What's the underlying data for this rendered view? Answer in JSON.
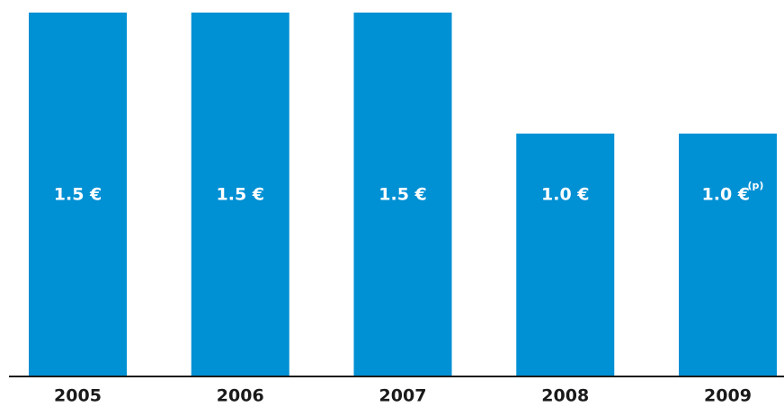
{
  "chart_data": {
    "type": "bar",
    "categories": [
      "2005",
      "2006",
      "2007",
      "2008",
      "2009"
    ],
    "values": [
      1.5,
      1.5,
      1.5,
      1.0,
      1.0
    ],
    "data_labels": [
      "1.5 €",
      "1.5 €",
      "1.5 €",
      "1.0 €",
      "1.0 €"
    ],
    "annotations": [
      "",
      "",
      "",
      "",
      "(p)"
    ],
    "title": "",
    "xlabel": "",
    "ylabel": "",
    "ylim": [
      0,
      1.5
    ],
    "grid": false,
    "legend": "none",
    "colors": {
      "bar": "#0090d4",
      "axis": "#1a1a1a",
      "tick_text": "#1a1a1a",
      "label_text": "#ffffff"
    }
  }
}
